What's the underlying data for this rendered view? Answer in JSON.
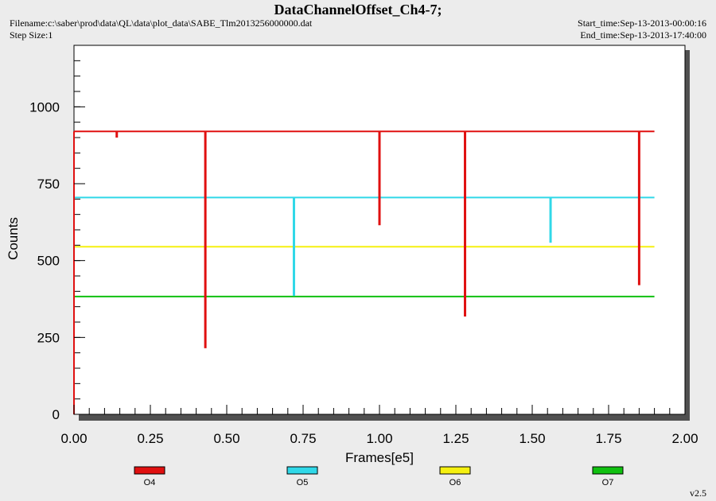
{
  "header": {
    "title": "DataChannelOffset_Ch4-7;",
    "filename": "Filename:c:\\saber\\prod\\data\\QL\\data\\plot_data\\SABE_Tlm2013256000000.dat",
    "step_size": "Step Size:1",
    "start_time": "Start_time:Sep-13-2013-00:00:16",
    "end_time": "End_time:Sep-13-2013-17:40:00"
  },
  "version": "v2.5",
  "colors": {
    "O4": "#e01010",
    "O5": "#30d8e8",
    "O6": "#f5f010",
    "O7": "#10c010"
  },
  "chart_data": {
    "type": "line",
    "xlabel": "Frames[e5]",
    "ylabel": "Counts",
    "xlim": [
      0,
      2.0
    ],
    "ylim": [
      0,
      1200
    ],
    "x_ticks": [
      "0.00",
      "0.25",
      "0.50",
      "0.75",
      "1.00",
      "1.25",
      "1.50",
      "1.75",
      "2.00"
    ],
    "y_ticks": [
      "0",
      "250",
      "500",
      "750",
      "1000"
    ],
    "y_tick_values": [
      0,
      250,
      500,
      750,
      1000
    ],
    "x_tick_values": [
      0,
      0.25,
      0.5,
      0.75,
      1.0,
      1.25,
      1.5,
      1.75,
      2.0
    ],
    "x_end": 1.9,
    "legend": [
      "O4",
      "O5",
      "O6",
      "O7"
    ],
    "series": [
      {
        "name": "O4",
        "baseline": 920,
        "dips": [
          [
            0.14,
            900
          ],
          [
            0.43,
            215
          ],
          [
            1.0,
            615
          ],
          [
            1.28,
            318
          ],
          [
            1.85,
            420
          ]
        ]
      },
      {
        "name": "O5",
        "baseline": 705,
        "dips": [
          [
            0.72,
            385
          ],
          [
            1.56,
            558
          ]
        ]
      },
      {
        "name": "O6",
        "baseline": 545,
        "dips": []
      },
      {
        "name": "O7",
        "baseline": 383,
        "dips": []
      }
    ]
  }
}
